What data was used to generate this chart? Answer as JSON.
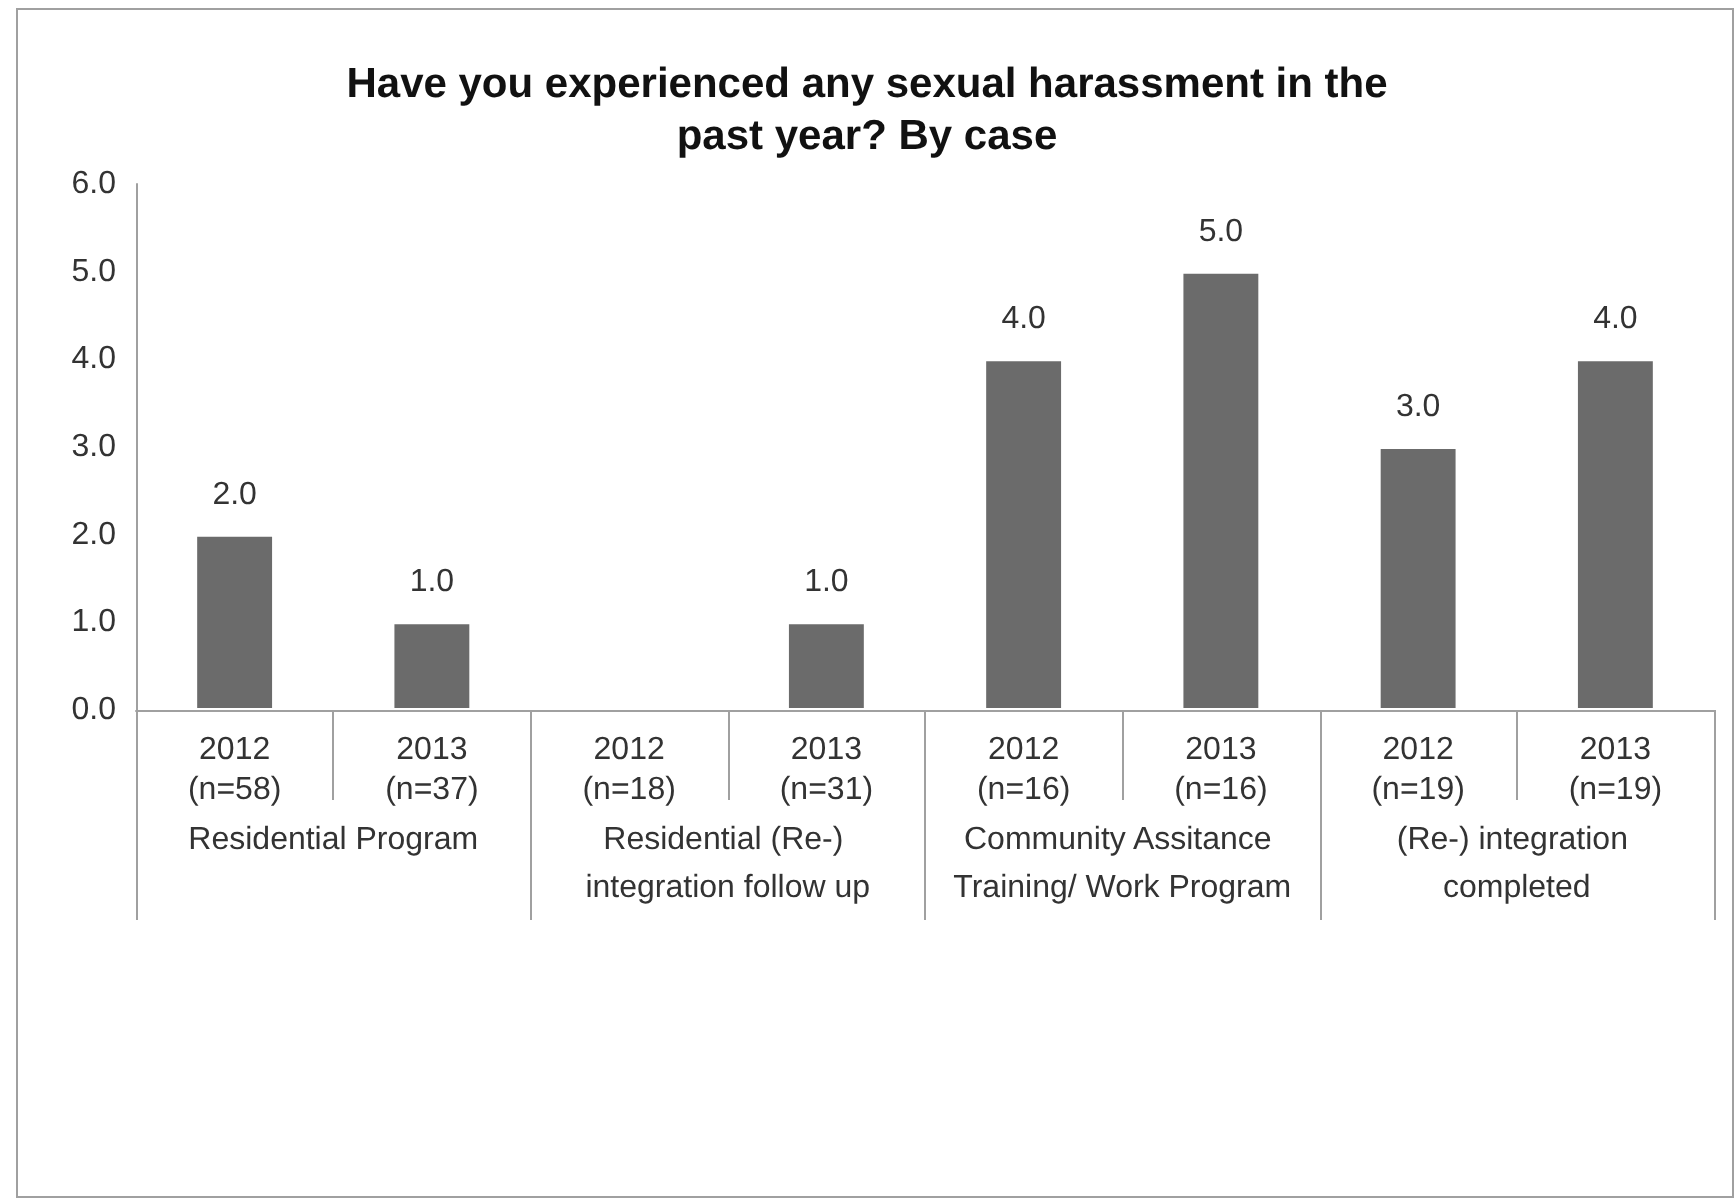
{
  "chart_data": {
    "type": "bar",
    "title": "Have you experienced any sexual harassment in the\npast year? By case",
    "categories": [
      "2012\n(n=58)",
      "2013\n(n=37)",
      "2012\n(n=18)",
      "2013\n(n=31)",
      "2012\n(n=16)",
      "2013\n(n=16)",
      "2012\n(n=19)",
      "2013\n(n=19)"
    ],
    "values": [
      2,
      1,
      null,
      1,
      4,
      5,
      3,
      4
    ],
    "value_labels": [
      "2.0",
      "1.0",
      null,
      "1.0",
      "4.0",
      "5.0",
      "3.0",
      "4.0"
    ],
    "color": "#6b6b6b",
    "annotations": [
      "Residential Program",
      "Residential (Re-) integration follow up",
      "Community Assitance Training/ Work Program",
      "(Re-) integration completed"
    ],
    "ylim": [
      0,
      6
    ],
    "yticks": [
      {
        "value": 0,
        "label": "0.0"
      },
      {
        "value": 1,
        "label": "1.0"
      },
      {
        "value": 2,
        "label": "2.0"
      },
      {
        "value": 3,
        "label": "3.0"
      },
      {
        "value": 4,
        "label": "4.0"
      },
      {
        "value": 5,
        "label": "5.0"
      },
      {
        "value": 6,
        "label": "6.0"
      }
    ],
    "grid": false
  }
}
